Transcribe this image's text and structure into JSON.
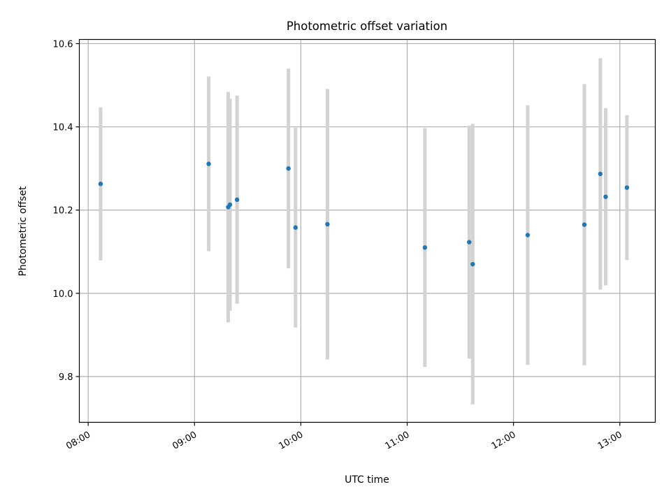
{
  "chart_data": {
    "type": "scatter",
    "title": "Photometric offset variation",
    "xlabel": "UTC time",
    "ylabel": "Photometric offset",
    "x_tick_labels": [
      "08:00",
      "09:00",
      "10:00",
      "11:00",
      "12:00",
      "13:00"
    ],
    "y_tick_labels": [
      "9.8",
      "10.0",
      "10.2",
      "10.4",
      "10.6"
    ],
    "y_ticks": [
      9.8,
      10.0,
      10.2,
      10.4,
      10.6
    ],
    "x_range": [
      "07:55",
      "13:20"
    ],
    "ylim": [
      9.69,
      10.61
    ],
    "grid": true,
    "marker_color": "#1f77b4",
    "errorbar_color": "#d3d3d3",
    "points": [
      {
        "time": "08:07",
        "y": 10.263,
        "err": 0.184
      },
      {
        "time": "09:08",
        "y": 10.311,
        "err": 0.21
      },
      {
        "time": "09:19",
        "y": 10.207,
        "err": 0.277
      },
      {
        "time": "09:20",
        "y": 10.213,
        "err": 0.255
      },
      {
        "time": "09:24",
        "y": 10.225,
        "err": 0.25
      },
      {
        "time": "09:53",
        "y": 10.3,
        "err": 0.24
      },
      {
        "time": "09:57",
        "y": 10.158,
        "err": 0.24
      },
      {
        "time": "10:15",
        "y": 10.166,
        "err": 0.325
      },
      {
        "time": "11:10",
        "y": 10.11,
        "err": 0.287
      },
      {
        "time": "11:35",
        "y": 10.123,
        "err": 0.28
      },
      {
        "time": "11:37",
        "y": 10.07,
        "err": 0.337
      },
      {
        "time": "12:08",
        "y": 10.14,
        "err": 0.312
      },
      {
        "time": "12:40",
        "y": 10.165,
        "err": 0.338
      },
      {
        "time": "12:49",
        "y": 10.287,
        "err": 0.278
      },
      {
        "time": "12:52",
        "y": 10.232,
        "err": 0.213
      },
      {
        "time": "13:04",
        "y": 10.254,
        "err": 0.174
      }
    ]
  }
}
